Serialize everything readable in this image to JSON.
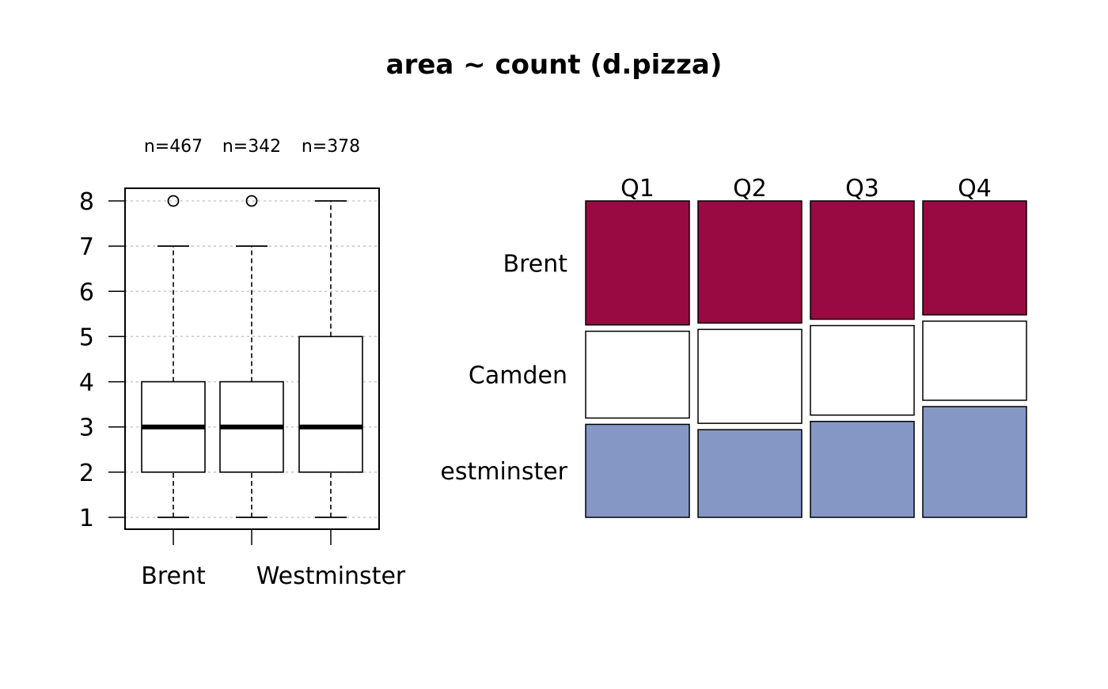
{
  "title": "area ~ count (d.pizza)",
  "chart_data": [
    {
      "type": "box",
      "categories": [
        "Brent",
        "Camden",
        "Westminster"
      ],
      "x_tick_labels_shown": [
        "Brent",
        "Westminster"
      ],
      "n_labels": [
        "n=467",
        "n=342",
        "n=378"
      ],
      "ylim": [
        1,
        8
      ],
      "y_ticks": [
        1,
        2,
        3,
        4,
        5,
        6,
        7,
        8
      ],
      "grid": "horizontal dotted",
      "boxes": [
        {
          "name": "Brent",
          "whisker_low": 1,
          "q1": 2,
          "median": 3,
          "q3": 4,
          "whisker_high": 7,
          "outliers": [
            8
          ]
        },
        {
          "name": "Camden",
          "whisker_low": 1,
          "q1": 2,
          "median": 3,
          "q3": 4,
          "whisker_high": 7,
          "outliers": [
            8
          ]
        },
        {
          "name": "Westminster",
          "whisker_low": 1,
          "q1": 2,
          "median": 3,
          "q3": 5,
          "whisker_high": 8,
          "outliers": []
        }
      ]
    },
    {
      "type": "mosaic",
      "columns": [
        "Q1",
        "Q2",
        "Q3",
        "Q4"
      ],
      "rows": [
        "Brent",
        "Camden",
        "Westminster"
      ],
      "row_tick_labels_shown": [
        "Brent",
        "Camden",
        "estminster"
      ],
      "proportions": [
        [
          0.4,
          0.28,
          0.3
        ],
        [
          0.39,
          0.3,
          0.28
        ],
        [
          0.37,
          0.28,
          0.3
        ],
        [
          0.36,
          0.25,
          0.35
        ]
      ],
      "colors": [
        "#990a42",
        "#ffffff",
        "#8597c5"
      ]
    }
  ]
}
